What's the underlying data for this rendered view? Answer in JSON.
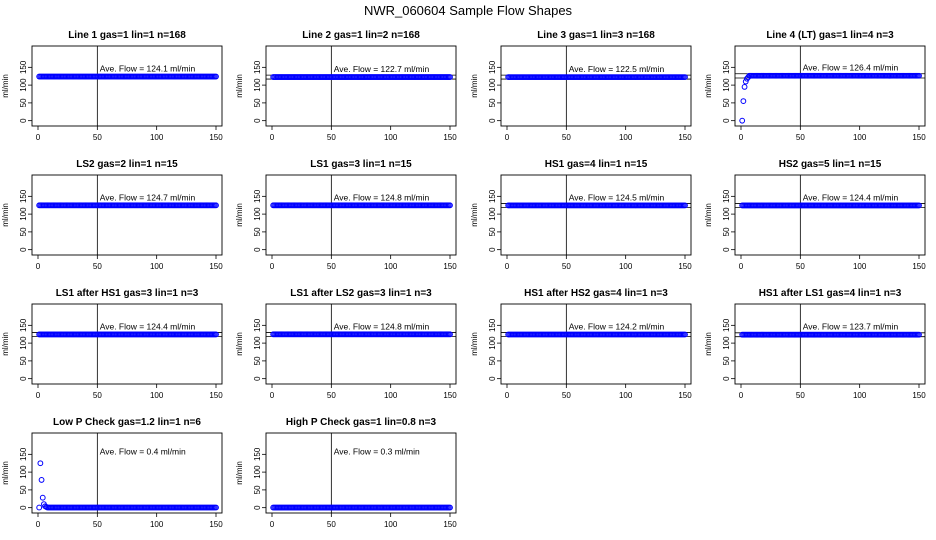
{
  "title": "NWR_060604  Sample Flow Shapes",
  "colors": {
    "points": "#0000ff",
    "axis": "#000000",
    "background": "#ffffff"
  },
  "chart_data": [
    {
      "type": "scatter",
      "title": "Line 1 gas=1 lin=1 n=168",
      "ylabel": "ml/min",
      "annotation": "Ave. Flow =  124.1  ml/min",
      "xlim": [
        0,
        150
      ],
      "ylim": [
        -15,
        210
      ],
      "x_ticks": [
        0,
        50,
        100,
        150
      ],
      "y_ticks": [
        0,
        50,
        100,
        150
      ],
      "ref_lines_h": [],
      "ref_line_v": 50,
      "series": [
        {
          "x_start": 1,
          "x_end": 150,
          "x_step": 1,
          "y_baseline": 124.1
        }
      ]
    },
    {
      "type": "scatter",
      "title": "Line 2 gas=1 lin=2 n=168",
      "ylabel": "ml/min",
      "annotation": "Ave. Flow =  122.7  ml/min",
      "xlim": [
        0,
        150
      ],
      "ylim": [
        -15,
        210
      ],
      "x_ticks": [
        0,
        50,
        100,
        150
      ],
      "y_ticks": [
        0,
        50,
        100,
        150
      ],
      "ref_lines_h": [
        117,
        128
      ],
      "ref_line_v": 50,
      "series": [
        {
          "x_start": 1,
          "x_end": 150,
          "x_step": 1,
          "y_baseline": 122.7
        }
      ]
    },
    {
      "type": "scatter",
      "title": "Line 3 gas=1 lin=3 n=168",
      "ylabel": "ml/min",
      "annotation": "Ave. Flow =  122.5  ml/min",
      "xlim": [
        0,
        150
      ],
      "ylim": [
        -15,
        210
      ],
      "x_ticks": [
        0,
        50,
        100,
        150
      ],
      "y_ticks": [
        0,
        50,
        100,
        150
      ],
      "ref_lines_h": [
        117,
        128
      ],
      "ref_line_v": 50,
      "series": [
        {
          "x_start": 1,
          "x_end": 150,
          "x_step": 1,
          "y_baseline": 122.5
        }
      ]
    },
    {
      "type": "scatter",
      "title": "Line 4 (LT) gas=1 lin=4 n=3",
      "ylabel": "ml/min",
      "annotation": "Ave. Flow =  126.4  ml/min",
      "xlim": [
        0,
        150
      ],
      "ylim": [
        -15,
        210
      ],
      "x_ticks": [
        0,
        50,
        100,
        150
      ],
      "y_ticks": [
        0,
        50,
        100,
        150
      ],
      "ref_lines_h": [
        120,
        132
      ],
      "ref_line_v": 50,
      "series": [
        {
          "x_start": 1,
          "x_end": 150,
          "x_step": 1,
          "y_baseline": 126.4,
          "startup": [
            [
              1,
              0
            ],
            [
              2,
              55
            ],
            [
              3,
              95
            ],
            [
              4,
              110
            ],
            [
              5,
              118
            ],
            [
              6,
              122
            ]
          ]
        }
      ]
    },
    {
      "type": "scatter",
      "title": "LS2 gas=2 lin=1 n=15",
      "ylabel": "ml/min",
      "annotation": "Ave. Flow =  124.7  ml/min",
      "xlim": [
        0,
        150
      ],
      "ylim": [
        -15,
        210
      ],
      "x_ticks": [
        0,
        50,
        100,
        150
      ],
      "y_ticks": [
        0,
        50,
        100,
        150
      ],
      "ref_lines_h": [],
      "ref_line_v": 50,
      "series": [
        {
          "x_start": 1,
          "x_end": 150,
          "x_step": 1,
          "y_baseline": 124.7
        }
      ]
    },
    {
      "type": "scatter",
      "title": "LS1 gas=3 lin=1 n=15",
      "ylabel": "ml/min",
      "annotation": "Ave. Flow =  124.8  ml/min",
      "xlim": [
        0,
        150
      ],
      "ylim": [
        -15,
        210
      ],
      "x_ticks": [
        0,
        50,
        100,
        150
      ],
      "y_ticks": [
        0,
        50,
        100,
        150
      ],
      "ref_lines_h": [],
      "ref_line_v": 50,
      "series": [
        {
          "x_start": 1,
          "x_end": 150,
          "x_step": 1,
          "y_baseline": 124.8
        }
      ]
    },
    {
      "type": "scatter",
      "title": "HS1 gas=4 lin=1 n=15",
      "ylabel": "ml/min",
      "annotation": "Ave. Flow =  124.5  ml/min",
      "xlim": [
        0,
        150
      ],
      "ylim": [
        -15,
        210
      ],
      "x_ticks": [
        0,
        50,
        100,
        150
      ],
      "y_ticks": [
        0,
        50,
        100,
        150
      ],
      "ref_lines_h": [
        119,
        130
      ],
      "ref_line_v": 50,
      "series": [
        {
          "x_start": 1,
          "x_end": 150,
          "x_step": 1,
          "y_baseline": 124.5
        }
      ]
    },
    {
      "type": "scatter",
      "title": "HS2 gas=5 lin=1 n=15",
      "ylabel": "ml/min",
      "annotation": "Ave. Flow =  124.4  ml/min",
      "xlim": [
        0,
        150
      ],
      "ylim": [
        -15,
        210
      ],
      "x_ticks": [
        0,
        50,
        100,
        150
      ],
      "y_ticks": [
        0,
        50,
        100,
        150
      ],
      "ref_lines_h": [
        119,
        130
      ],
      "ref_line_v": 50,
      "series": [
        {
          "x_start": 1,
          "x_end": 150,
          "x_step": 1,
          "y_baseline": 124.4
        }
      ]
    },
    {
      "type": "scatter",
      "title": "LS1 after HS1 gas=3 lin=1 n=3",
      "ylabel": "ml/min",
      "annotation": "Ave. Flow =  124.4  ml/min",
      "xlim": [
        0,
        150
      ],
      "ylim": [
        -15,
        210
      ],
      "x_ticks": [
        0,
        50,
        100,
        150
      ],
      "y_ticks": [
        0,
        50,
        100,
        150
      ],
      "ref_lines_h": [
        119,
        130
      ],
      "ref_line_v": 50,
      "series": [
        {
          "x_start": 1,
          "x_end": 150,
          "x_step": 1,
          "y_baseline": 124.4
        }
      ]
    },
    {
      "type": "scatter",
      "title": "LS1 after LS2 gas=3 lin=1 n=3",
      "ylabel": "ml/min",
      "annotation": "Ave. Flow =  124.8  ml/min",
      "xlim": [
        0,
        150
      ],
      "ylim": [
        -15,
        210
      ],
      "x_ticks": [
        0,
        50,
        100,
        150
      ],
      "y_ticks": [
        0,
        50,
        100,
        150
      ],
      "ref_lines_h": [
        119,
        130
      ],
      "ref_line_v": 50,
      "series": [
        {
          "x_start": 1,
          "x_end": 150,
          "x_step": 1,
          "y_baseline": 124.8
        }
      ]
    },
    {
      "type": "scatter",
      "title": "HS1 after HS2 gas=4 lin=1 n=3",
      "ylabel": "ml/min",
      "annotation": "Ave. Flow =  124.2  ml/min",
      "xlim": [
        0,
        150
      ],
      "ylim": [
        -15,
        210
      ],
      "x_ticks": [
        0,
        50,
        100,
        150
      ],
      "y_ticks": [
        0,
        50,
        100,
        150
      ],
      "ref_lines_h": [
        119,
        130
      ],
      "ref_line_v": 50,
      "series": [
        {
          "x_start": 1,
          "x_end": 150,
          "x_step": 1,
          "y_baseline": 124.2
        }
      ]
    },
    {
      "type": "scatter",
      "title": "HS1 after LS1 gas=4 lin=1 n=3",
      "ylabel": "ml/min",
      "annotation": "Ave. Flow =  123.7  ml/min",
      "xlim": [
        0,
        150
      ],
      "ylim": [
        -15,
        210
      ],
      "x_ticks": [
        0,
        50,
        100,
        150
      ],
      "y_ticks": [
        0,
        50,
        100,
        150
      ],
      "ref_lines_h": [
        118,
        129
      ],
      "ref_line_v": 50,
      "series": [
        {
          "x_start": 1,
          "x_end": 150,
          "x_step": 1,
          "y_baseline": 123.7
        }
      ]
    },
    {
      "type": "scatter",
      "title": "Low P Check gas=1.2 lin=1 n=6",
      "ylabel": "ml/min",
      "annotation": "Ave. Flow =  0.4  ml/min",
      "xlim": [
        0,
        150
      ],
      "ylim": [
        -15,
        210
      ],
      "x_ticks": [
        0,
        50,
        100,
        150
      ],
      "y_ticks": [
        0,
        50,
        100,
        150
      ],
      "ref_lines_h": [],
      "ref_line_v": 50,
      "series": [
        {
          "x_start": 1,
          "x_end": 150,
          "x_step": 1,
          "y_baseline": 0.4,
          "startup": [
            [
              2,
              125
            ],
            [
              3,
              78
            ],
            [
              4,
              28
            ],
            [
              5,
              10
            ],
            [
              6,
              4
            ],
            [
              7,
              2
            ]
          ]
        }
      ]
    },
    {
      "type": "scatter",
      "title": "High P Check gas=1 lin=0.8 n=3",
      "ylabel": "ml/min",
      "annotation": "Ave. Flow =  0.3  ml/min",
      "xlim": [
        0,
        150
      ],
      "ylim": [
        -15,
        210
      ],
      "x_ticks": [
        0,
        50,
        100,
        150
      ],
      "y_ticks": [
        0,
        50,
        100,
        150
      ],
      "ref_lines_h": [],
      "ref_line_v": 50,
      "series": [
        {
          "x_start": 1,
          "x_end": 150,
          "x_step": 1,
          "y_baseline": 0.3
        }
      ]
    }
  ]
}
